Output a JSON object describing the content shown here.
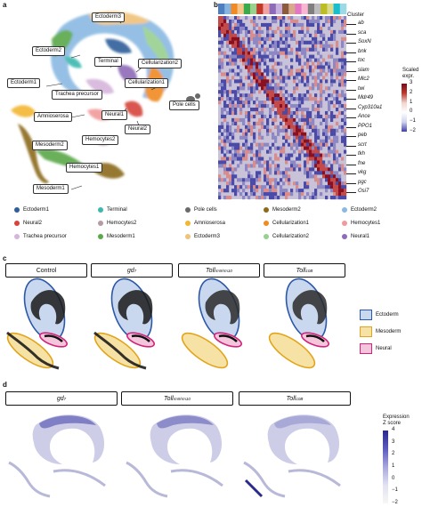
{
  "panels": {
    "a": "a",
    "b": "b",
    "c": "c",
    "d": "d"
  },
  "panel_a": {
    "labels": [
      {
        "id": "ectoderm3",
        "text": "Ectoderm3"
      },
      {
        "id": "ectoderm2",
        "text": "Ectoderm2"
      },
      {
        "id": "terminal",
        "text": "Terminal"
      },
      {
        "id": "cellularization2",
        "text": "Cellularization2"
      },
      {
        "id": "ectoderm1",
        "text": "Ectoderm1"
      },
      {
        "id": "cellularization1",
        "text": "Cellularization1"
      },
      {
        "id": "trachea",
        "text": "Trachea precursor"
      },
      {
        "id": "amnioserosa",
        "text": "Amnioserosa"
      },
      {
        "id": "neural1",
        "text": "Neural1"
      },
      {
        "id": "polecells",
        "text": "Pole cells"
      },
      {
        "id": "neural2",
        "text": "Neural2"
      },
      {
        "id": "hemocytes2",
        "text": "Hemocytes2"
      },
      {
        "id": "mesoderm2",
        "text": "Mesoderm2"
      },
      {
        "id": "hemocytes1",
        "text": "Hemocytes1"
      },
      {
        "id": "mesoderm1",
        "text": "Mesoderm1"
      }
    ]
  },
  "panel_b": {
    "cluster_label": "Cluster",
    "cluster_colors": [
      "#4d7fc0",
      "#86b3e0",
      "#f08a24",
      "#f6c58a",
      "#3aaa4b",
      "#9bd08e",
      "#c0392b",
      "#f2a3a3",
      "#8e6bb8",
      "#c9b1df",
      "#8c5a3c",
      "#d7a98d",
      "#e377c2",
      "#f7b6d2",
      "#7f7f7f",
      "#bcbcbc",
      "#bcbd22",
      "#dbdb8d",
      "#17becf",
      "#9edae5"
    ],
    "genes": [
      "ab",
      "sca",
      "SoxN",
      "bnk",
      "toc",
      "slam",
      "Mlc2",
      "twi",
      "Mdr49",
      "Cyp310a1",
      "Ance",
      "PPO1",
      "peb",
      "scrt",
      "tkh",
      "fne",
      "vkg",
      "pgc",
      "Osi7"
    ],
    "colorbar": {
      "title_line1": "Scaled",
      "title_line2": "expr.",
      "ticks": [
        "3",
        "2",
        "1",
        "0",
        "−1",
        "−2"
      ]
    }
  },
  "legend": {
    "items": [
      {
        "label": "Ectoderm1",
        "color": "#2f5f9a"
      },
      {
        "label": "Terminal",
        "color": "#3cb8b0"
      },
      {
        "label": "Pole cells",
        "color": "#6a6a6a"
      },
      {
        "label": "Mesoderm2",
        "color": "#8b6b1a"
      },
      {
        "label": "Ectoderm2",
        "color": "#8ab9e2"
      },
      {
        "label": "Neural2",
        "color": "#d6443c"
      },
      {
        "label": "Hemocytes2",
        "color": "#b89aa6"
      },
      {
        "label": "Amnioserosa",
        "color": "#f2b630"
      },
      {
        "label": "Cellularization1",
        "color": "#f08a24"
      },
      {
        "label": "Hemocytes1",
        "color": "#f19a9a"
      },
      {
        "label": "Trachea precursor",
        "color": "#d6b5dc"
      },
      {
        "label": "Mesoderm1",
        "color": "#5aa84a"
      },
      {
        "label": "Ectoderm3",
        "color": "#f0c27a"
      },
      {
        "label": "Cellularization2",
        "color": "#98d090"
      },
      {
        "label": "Neural1",
        "color": "#8e6bb8"
      }
    ]
  },
  "panel_c": {
    "conditions": [
      "Control",
      "gd",
      "Toll",
      "Toll"
    ],
    "condition_superscripts": [
      "",
      "7",
      "rm9/rm10",
      "10B"
    ],
    "region_legend": [
      {
        "label": "Ectoderm",
        "fill": "#c9d8ee",
        "stroke": "#2b58a8"
      },
      {
        "label": "Mesoderm",
        "fill": "#f7e2a6",
        "stroke": "#e2a41a"
      },
      {
        "label": "Neural",
        "fill": "#f3c6dc",
        "stroke": "#d1247c"
      }
    ]
  },
  "panel_d": {
    "conditions": [
      "gd",
      "Toll",
      "Toll"
    ],
    "condition_superscripts": [
      "7",
      "rm9/rm10",
      "10B"
    ],
    "colorbar": {
      "title_line1": "Expression",
      "title_line2": "Z score",
      "ticks": [
        "4",
        "3",
        "2",
        "1",
        "0",
        "−1",
        "−2"
      ]
    }
  }
}
